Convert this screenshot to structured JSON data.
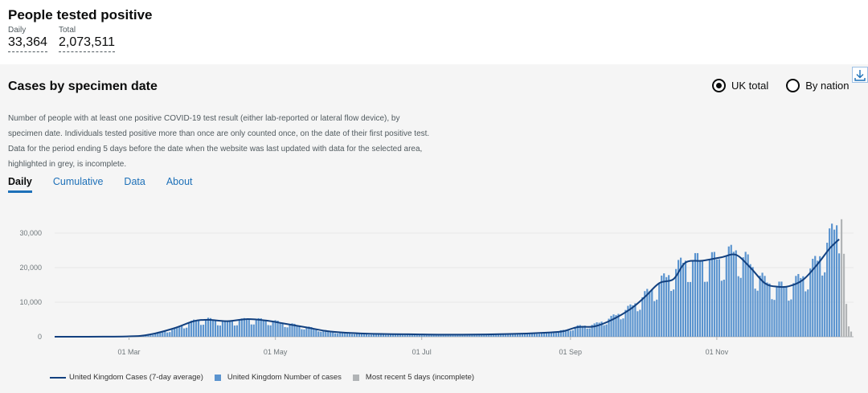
{
  "header": {
    "title": "People tested positive",
    "daily_label": "Daily",
    "daily_value": "33,364",
    "total_label": "Total",
    "total_value": "2,073,511"
  },
  "card": {
    "title": "Cases by specimen date",
    "radio_uk": "UK total",
    "radio_nation": "By nation",
    "description": "Number of people with at least one positive COVID-19 test result (either lab-reported or lateral flow device), by specimen date. Individuals tested positive more than once are only counted once, on the date of their first positive test. Data for the period ending 5 days before the date when the website was last updated with data for the selected area, highlighted in grey, is incomplete.",
    "tabs": [
      "Daily",
      "Cumulative",
      "Data",
      "About"
    ]
  },
  "colors": {
    "bar": "#5b94cf",
    "line": "#12407f",
    "incomplete": "#b1b4b6",
    "link": "#1d70b8"
  },
  "chart_data": {
    "type": "bar",
    "title": "Cases by specimen date",
    "start_date": "2020-01-30",
    "xlim_days": [
      0,
      333
    ],
    "ylim": [
      0,
      35000
    ],
    "yticks": [
      0,
      10000,
      20000,
      30000
    ],
    "ytick_labels": [
      "0",
      "10,000",
      "20,000",
      "30,000"
    ],
    "xticks": [
      {
        "day": 31,
        "label": "01 Mar"
      },
      {
        "day": 92,
        "label": "01 May"
      },
      {
        "day": 153,
        "label": "01 Jul"
      },
      {
        "day": 215,
        "label": "01 Sep"
      },
      {
        "day": 276,
        "label": "01 Nov"
      }
    ],
    "series": [
      {
        "name": "United Kingdom Cases (7-day average)",
        "type": "line"
      },
      {
        "name": "United Kingdom Number of cases",
        "type": "bar"
      },
      {
        "name": "Most recent 5 days (incomplete)",
        "type": "bar"
      }
    ],
    "daily_keypoints": [
      [
        0,
        0
      ],
      [
        30,
        80
      ],
      [
        40,
        600
      ],
      [
        50,
        2200
      ],
      [
        58,
        4500
      ],
      [
        64,
        5000
      ],
      [
        72,
        4200
      ],
      [
        80,
        5000
      ],
      [
        88,
        4800
      ],
      [
        95,
        4000
      ],
      [
        105,
        2800
      ],
      [
        115,
        1500
      ],
      [
        130,
        800
      ],
      [
        150,
        700
      ],
      [
        170,
        600
      ],
      [
        190,
        900
      ],
      [
        205,
        1200
      ],
      [
        212,
        1800
      ],
      [
        218,
        3000
      ],
      [
        225,
        3500
      ],
      [
        232,
        5500
      ],
      [
        240,
        8500
      ],
      [
        246,
        12000
      ],
      [
        252,
        15500
      ],
      [
        258,
        19000
      ],
      [
        263,
        22000
      ],
      [
        270,
        22000
      ],
      [
        278,
        22500
      ],
      [
        284,
        25000
      ],
      [
        290,
        21000
      ],
      [
        296,
        16000
      ],
      [
        301,
        14500
      ],
      [
        306,
        14500
      ],
      [
        312,
        17500
      ],
      [
        318,
        22000
      ],
      [
        323,
        28500
      ],
      [
        327,
        33500
      ]
    ],
    "incomplete_values": [
      34000,
      24000,
      9500,
      3000,
      1500
    ],
    "line_keypoints": [
      [
        0,
        0
      ],
      [
        30,
        100
      ],
      [
        40,
        700
      ],
      [
        50,
        2500
      ],
      [
        58,
        4500
      ],
      [
        64,
        4900
      ],
      [
        72,
        4500
      ],
      [
        80,
        5100
      ],
      [
        88,
        4700
      ],
      [
        95,
        3900
      ],
      [
        105,
        2700
      ],
      [
        115,
        1500
      ],
      [
        130,
        900
      ],
      [
        150,
        700
      ],
      [
        170,
        600
      ],
      [
        190,
        800
      ],
      [
        205,
        1200
      ],
      [
        212,
        1600
      ],
      [
        218,
        2800
      ],
      [
        225,
        3000
      ],
      [
        232,
        4800
      ],
      [
        240,
        8000
      ],
      [
        246,
        11500
      ],
      [
        252,
        15500
      ],
      [
        258,
        16700
      ],
      [
        263,
        21500
      ],
      [
        270,
        22000
      ],
      [
        278,
        23000
      ],
      [
        284,
        23700
      ],
      [
        290,
        20000
      ],
      [
        296,
        15500
      ],
      [
        301,
        14500
      ],
      [
        306,
        14600
      ],
      [
        312,
        16500
      ],
      [
        318,
        21000
      ],
      [
        323,
        25500
      ],
      [
        327,
        28200
      ]
    ]
  }
}
